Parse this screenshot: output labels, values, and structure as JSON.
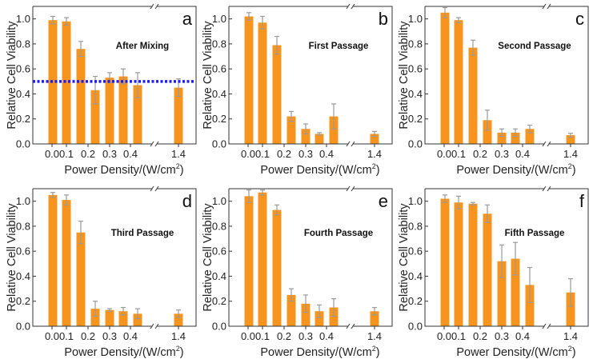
{
  "colors": {
    "bar": "#F7941D",
    "error": "#9a9a9a",
    "threshold": "#1a1aff",
    "axis": "#333333"
  },
  "chart_data": [
    {
      "type": "bar",
      "panel": "a",
      "title": "After Mixing",
      "xlabel": "Power Density/(W/cm²)",
      "ylabel": "Relative Cell Viability",
      "ylim": [
        0,
        1.1
      ],
      "yticks": [
        "0.0",
        "0.2",
        "0.4",
        "0.6",
        "0.8",
        "1.0"
      ],
      "xticks": [
        "0.0",
        "0.1",
        "0.2",
        "0.3",
        "0.4",
        "1.4"
      ],
      "values": [
        0.99,
        0.98,
        0.76,
        0.43,
        0.53,
        0.54,
        0.47,
        0.45
      ],
      "errors": [
        0.03,
        0.03,
        0.06,
        0.11,
        0.04,
        0.06,
        0.1,
        0.07
      ],
      "threshold": 0.5
    },
    {
      "type": "bar",
      "panel": "b",
      "title": "First Passage",
      "xlabel": "Power Density/(W/cm²)",
      "ylabel": "Relative Cell Viability",
      "ylim": [
        0,
        1.1
      ],
      "yticks": [
        "0.0",
        "0.2",
        "0.4",
        "0.6",
        "0.8",
        "1.0"
      ],
      "xticks": [
        "0.0",
        "0.1",
        "0.2",
        "0.3",
        "0.4",
        "1.4"
      ],
      "values": [
        1.02,
        0.97,
        0.79,
        0.22,
        0.12,
        0.08,
        0.22,
        0.08
      ],
      "errors": [
        0.03,
        0.05,
        0.07,
        0.04,
        0.04,
        0.01,
        0.1,
        0.02
      ]
    },
    {
      "type": "bar",
      "panel": "c",
      "title": "Second Passage",
      "xlabel": "Power Density/(W/cm²)",
      "ylabel": "Relative Cell Viability",
      "ylim": [
        0,
        1.1
      ],
      "yticks": [
        "0.0",
        "0.2",
        "0.4",
        "0.6",
        "0.8",
        "1.0"
      ],
      "xticks": [
        "0.0",
        "0.1",
        "0.2",
        "0.3",
        "0.4",
        "1.4"
      ],
      "values": [
        1.05,
        0.99,
        0.77,
        0.19,
        0.09,
        0.09,
        0.12,
        0.07
      ],
      "errors": [
        0.04,
        0.02,
        0.06,
        0.08,
        0.03,
        0.03,
        0.03,
        0.015
      ]
    },
    {
      "type": "bar",
      "panel": "d",
      "title": "Third Passage",
      "xlabel": "Power Density/(W/cm²)",
      "ylabel": "Relative Cell Viability",
      "ylim": [
        0,
        1.1
      ],
      "yticks": [
        "0.0",
        "0.2",
        "0.4",
        "0.6",
        "0.8",
        "1.0"
      ],
      "xticks": [
        "0.0",
        "0.1",
        "0.2",
        "0.3",
        "0.4",
        "1.4"
      ],
      "values": [
        1.05,
        1.01,
        0.75,
        0.14,
        0.13,
        0.12,
        0.1,
        0.1
      ],
      "errors": [
        0.02,
        0.04,
        0.09,
        0.06,
        0.01,
        0.03,
        0.04,
        0.03
      ]
    },
    {
      "type": "bar",
      "panel": "e",
      "title": "Fourth Passage",
      "xlabel": "Power Density/(W/cm²)",
      "ylabel": "Relative Cell Viability",
      "ylim": [
        0,
        1.1
      ],
      "yticks": [
        "0.0",
        "0.2",
        "0.4",
        "0.6",
        "0.8",
        "1.0"
      ],
      "xticks": [
        "0.0",
        "0.1",
        "0.2",
        "0.3",
        "0.4",
        "1.4"
      ],
      "values": [
        1.04,
        1.07,
        0.93,
        0.25,
        0.18,
        0.12,
        0.15,
        0.12
      ],
      "errors": [
        0.05,
        0.02,
        0.04,
        0.05,
        0.07,
        0.05,
        0.07,
        0.03
      ]
    },
    {
      "type": "bar",
      "panel": "f",
      "title": "Fifth Passage",
      "xlabel": "Power Density/(W/cm²)",
      "ylabel": "Relative Cell Viability",
      "ylim": [
        0,
        1.1
      ],
      "yticks": [
        "0.0",
        "0.2",
        "0.4",
        "0.6",
        "0.8",
        "1.0"
      ],
      "xticks": [
        "0.0",
        "0.1",
        "0.2",
        "0.3",
        "0.4",
        "1.4"
      ],
      "values": [
        1.02,
        0.99,
        0.98,
        0.9,
        0.52,
        0.54,
        0.33,
        0.27
      ],
      "errors": [
        0.03,
        0.05,
        0.01,
        0.07,
        0.13,
        0.13,
        0.14,
        0.11
      ]
    }
  ]
}
